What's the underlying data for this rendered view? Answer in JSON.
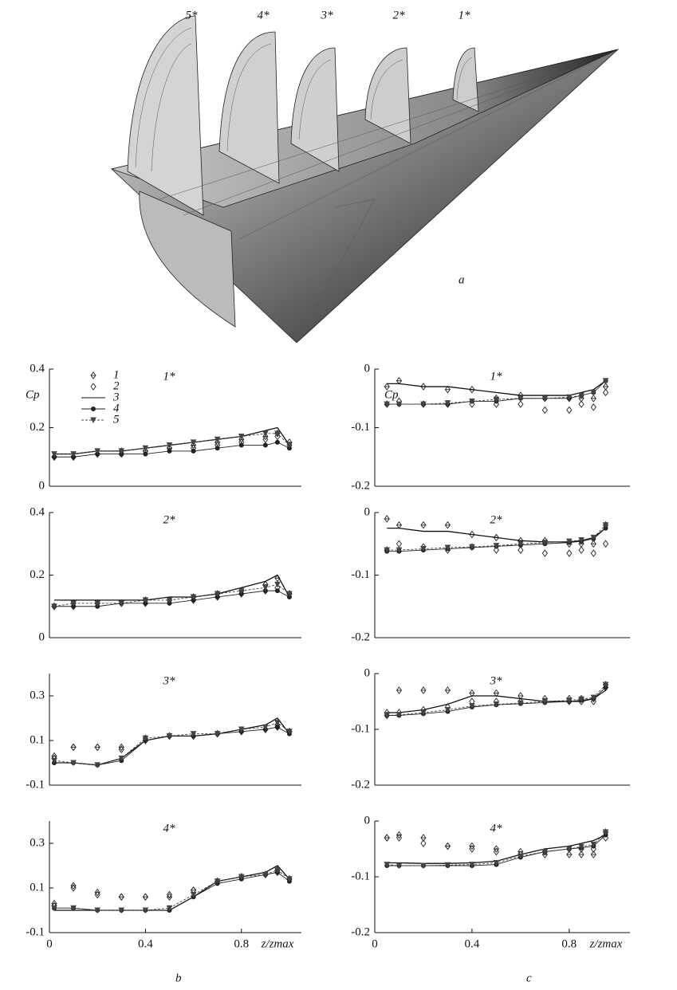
{
  "figure": {
    "sections": [
      "5*",
      "4*",
      "3*",
      "2*",
      "1*"
    ],
    "panel_a": "a",
    "panel_b": "b",
    "panel_c": "c"
  },
  "chart_data": [
    {
      "type": "line",
      "title": "1*",
      "ylabel": "Cp",
      "legend": "upper left",
      "xlim": [
        0,
        1.05
      ],
      "ylim": [
        0,
        0.4
      ],
      "yticks": [
        0,
        0.2,
        0.4
      ],
      "x": [
        0.02,
        0.1,
        0.2,
        0.3,
        0.4,
        0.5,
        0.6,
        0.7,
        0.8,
        0.9,
        0.95,
        1.0
      ],
      "series": [
        {
          "name": "1",
          "color": "#333333",
          "marker": "diamond-cross",
          "values": [
            0.1,
            0.1,
            0.11,
            0.12,
            0.12,
            0.13,
            0.14,
            0.15,
            0.16,
            0.17,
            0.18,
            0.15
          ]
        },
        {
          "name": "2",
          "color": "#333333",
          "marker": "diamond",
          "values": [
            0.1,
            0.1,
            0.11,
            0.11,
            0.12,
            0.13,
            0.13,
            0.14,
            0.15,
            0.16,
            0.17,
            0.14
          ]
        },
        {
          "name": "3",
          "color": "#111111",
          "marker": "none",
          "values": [
            0.11,
            0.11,
            0.12,
            0.12,
            0.13,
            0.14,
            0.15,
            0.16,
            0.17,
            0.19,
            0.2,
            0.14
          ]
        },
        {
          "name": "4",
          "color": "#222222",
          "marker": "circle",
          "values": [
            0.1,
            0.1,
            0.11,
            0.11,
            0.11,
            0.12,
            0.12,
            0.13,
            0.14,
            0.14,
            0.15,
            0.13
          ]
        },
        {
          "name": "5",
          "color": "#444444",
          "marker": "triangle",
          "dash": true,
          "values": [
            0.11,
            0.11,
            0.12,
            0.12,
            0.13,
            0.14,
            0.15,
            0.16,
            0.17,
            0.18,
            0.18,
            0.14
          ]
        }
      ]
    },
    {
      "type": "line",
      "title": "2*",
      "xlim": [
        0,
        1.05
      ],
      "ylim": [
        0,
        0.4
      ],
      "yticks": [
        0,
        0.2,
        0.4
      ],
      "x": [
        0.02,
        0.1,
        0.2,
        0.3,
        0.4,
        0.5,
        0.6,
        0.7,
        0.8,
        0.9,
        0.95,
        1.0
      ],
      "series": [
        {
          "color": "#333333",
          "marker": "diamond-cross",
          "values": [
            0.1,
            0.11,
            0.11,
            0.11,
            0.12,
            0.12,
            0.13,
            0.14,
            0.15,
            0.17,
            0.19,
            0.14
          ]
        },
        {
          "color": "#333333",
          "marker": "diamond",
          "values": [
            0.1,
            0.1,
            0.11,
            0.11,
            0.11,
            0.12,
            0.12,
            0.13,
            0.14,
            0.15,
            0.16,
            0.14
          ]
        },
        {
          "color": "#111111",
          "marker": "none",
          "values": [
            0.12,
            0.12,
            0.12,
            0.12,
            0.12,
            0.13,
            0.13,
            0.14,
            0.16,
            0.18,
            0.2,
            0.13
          ]
        },
        {
          "color": "#222222",
          "marker": "circle",
          "values": [
            0.1,
            0.1,
            0.1,
            0.11,
            0.11,
            0.11,
            0.12,
            0.13,
            0.14,
            0.15,
            0.15,
            0.13
          ]
        },
        {
          "color": "#444444",
          "marker": "triangle",
          "dash": true,
          "values": [
            0.1,
            0.11,
            0.11,
            0.11,
            0.12,
            0.12,
            0.13,
            0.14,
            0.15,
            0.16,
            0.17,
            0.14
          ]
        }
      ]
    },
    {
      "type": "line",
      "title": "3*",
      "xlim": [
        0,
        1.05
      ],
      "ylim": [
        -0.1,
        0.4
      ],
      "yticks": [
        -0.1,
        0.1,
        0.3
      ],
      "x": [
        0.02,
        0.1,
        0.2,
        0.3,
        0.4,
        0.5,
        0.6,
        0.7,
        0.8,
        0.9,
        0.95,
        1.0
      ],
      "series": [
        {
          "color": "#333333",
          "marker": "diamond-cross",
          "values": [
            0.03,
            0.07,
            0.07,
            0.07,
            0.11,
            0.12,
            0.12,
            0.13,
            0.14,
            0.15,
            0.17,
            0.14
          ]
        },
        {
          "color": "#333333",
          "marker": "diamond",
          "values": [
            0.02,
            0.07,
            0.07,
            0.06,
            0.1,
            0.12,
            0.12,
            0.13,
            0.14,
            0.15,
            0.16,
            0.14
          ]
        },
        {
          "color": "#111111",
          "marker": "none",
          "values": [
            0.0,
            0.0,
            -0.01,
            0.02,
            0.1,
            0.12,
            0.12,
            0.13,
            0.15,
            0.17,
            0.2,
            0.13
          ]
        },
        {
          "color": "#222222",
          "marker": "circle",
          "values": [
            0.0,
            0.0,
            -0.01,
            0.01,
            0.1,
            0.12,
            0.12,
            0.13,
            0.14,
            0.15,
            0.16,
            0.13
          ]
        },
        {
          "color": "#444444",
          "marker": "triangle",
          "dash": true,
          "values": [
            0.01,
            0.0,
            -0.01,
            0.02,
            0.11,
            0.12,
            0.13,
            0.13,
            0.15,
            0.16,
            0.18,
            0.14
          ]
        }
      ]
    },
    {
      "type": "line",
      "title": "4*",
      "xlabel": "z/zmax",
      "xlim": [
        0,
        1.05
      ],
      "ylim": [
        -0.1,
        0.4
      ],
      "yticks": [
        -0.1,
        0.1,
        0.3
      ],
      "xticks": [
        0,
        0.4,
        0.8
      ],
      "x": [
        0.02,
        0.1,
        0.2,
        0.3,
        0.4,
        0.5,
        0.6,
        0.7,
        0.8,
        0.9,
        0.95,
        1.0
      ],
      "series": [
        {
          "color": "#333333",
          "marker": "diamond-cross",
          "values": [
            0.03,
            0.11,
            0.08,
            0.06,
            0.06,
            0.06,
            0.09,
            0.13,
            0.15,
            0.16,
            0.18,
            0.14
          ]
        },
        {
          "color": "#333333",
          "marker": "diamond",
          "values": [
            0.02,
            0.1,
            0.07,
            0.06,
            0.06,
            0.07,
            0.09,
            0.13,
            0.15,
            0.16,
            0.17,
            0.14
          ]
        },
        {
          "color": "#111111",
          "marker": "none",
          "values": [
            0.0,
            0.0,
            0.0,
            0.0,
            0.0,
            0.0,
            0.06,
            0.13,
            0.15,
            0.17,
            0.2,
            0.14
          ]
        },
        {
          "color": "#222222",
          "marker": "circle",
          "values": [
            0.01,
            0.01,
            0.0,
            0.0,
            0.0,
            0.0,
            0.06,
            0.12,
            0.14,
            0.16,
            0.17,
            0.13
          ]
        },
        {
          "color": "#444444",
          "marker": "triangle",
          "dash": true,
          "values": [
            0.01,
            0.01,
            0.0,
            0.0,
            0.0,
            0.01,
            0.07,
            0.13,
            0.15,
            0.16,
            0.18,
            0.14
          ]
        }
      ]
    },
    {
      "type": "line",
      "title": "1*",
      "ylabel": "Cp",
      "xlim": [
        0,
        1.05
      ],
      "ylim": [
        -0.2,
        0
      ],
      "yticks": [
        -0.2,
        -0.1,
        0
      ],
      "x": [
        0.05,
        0.1,
        0.2,
        0.3,
        0.4,
        0.5,
        0.6,
        0.7,
        0.8,
        0.85,
        0.9,
        0.95
      ],
      "series": [
        {
          "color": "#333333",
          "marker": "diamond-cross",
          "values": [
            -0.03,
            -0.02,
            -0.03,
            -0.035,
            -0.035,
            -0.05,
            -0.045,
            -0.05,
            -0.05,
            -0.05,
            -0.05,
            -0.03
          ]
        },
        {
          "color": "#333333",
          "marker": "diamond",
          "values": [
            -0.06,
            -0.055,
            -0.06,
            -0.06,
            -0.06,
            -0.06,
            -0.06,
            -0.07,
            -0.07,
            -0.06,
            -0.065,
            -0.04
          ]
        },
        {
          "color": "#111111",
          "marker": "none",
          "values": [
            -0.025,
            -0.025,
            -0.03,
            -0.03,
            -0.035,
            -0.04,
            -0.045,
            -0.045,
            -0.045,
            -0.04,
            -0.035,
            -0.02
          ]
        },
        {
          "color": "#222222",
          "marker": "circle",
          "values": [
            -0.06,
            -0.06,
            -0.06,
            -0.06,
            -0.055,
            -0.055,
            -0.05,
            -0.05,
            -0.05,
            -0.045,
            -0.04,
            -0.02
          ]
        },
        {
          "color": "#444444",
          "marker": "triangle",
          "dash": true,
          "values": [
            -0.06,
            -0.06,
            -0.06,
            -0.058,
            -0.055,
            -0.052,
            -0.05,
            -0.05,
            -0.048,
            -0.045,
            -0.04,
            -0.02
          ]
        }
      ]
    },
    {
      "type": "line",
      "title": "2*",
      "xlim": [
        0,
        1.05
      ],
      "ylim": [
        -0.2,
        0
      ],
      "yticks": [
        -0.2,
        -0.1,
        0
      ],
      "x": [
        0.05,
        0.1,
        0.2,
        0.3,
        0.4,
        0.5,
        0.6,
        0.7,
        0.8,
        0.85,
        0.9,
        0.95
      ],
      "series": [
        {
          "color": "#333333",
          "marker": "diamond-cross",
          "values": [
            -0.01,
            -0.02,
            -0.02,
            -0.02,
            -0.035,
            -0.04,
            -0.045,
            -0.045,
            -0.05,
            -0.05,
            -0.05,
            -0.02
          ]
        },
        {
          "color": "#333333",
          "marker": "diamond",
          "values": [
            -0.06,
            -0.05,
            -0.055,
            -0.06,
            -0.055,
            -0.06,
            -0.06,
            -0.065,
            -0.065,
            -0.06,
            -0.065,
            -0.05
          ]
        },
        {
          "color": "#111111",
          "marker": "none",
          "values": [
            -0.025,
            -0.025,
            -0.03,
            -0.03,
            -0.035,
            -0.04,
            -0.045,
            -0.047,
            -0.047,
            -0.045,
            -0.04,
            -0.025
          ]
        },
        {
          "color": "#222222",
          "marker": "circle",
          "values": [
            -0.062,
            -0.062,
            -0.06,
            -0.058,
            -0.056,
            -0.054,
            -0.052,
            -0.05,
            -0.048,
            -0.046,
            -0.042,
            -0.025
          ]
        },
        {
          "color": "#444444",
          "marker": "triangle",
          "dash": true,
          "values": [
            -0.06,
            -0.06,
            -0.058,
            -0.056,
            -0.055,
            -0.053,
            -0.05,
            -0.048,
            -0.046,
            -0.044,
            -0.04,
            -0.02
          ]
        }
      ]
    },
    {
      "type": "line",
      "title": "3*",
      "xlim": [
        0,
        1.05
      ],
      "ylim": [
        -0.2,
        0
      ],
      "yticks": [
        -0.2,
        -0.1,
        0
      ],
      "x": [
        0.05,
        0.1,
        0.2,
        0.3,
        0.4,
        0.5,
        0.6,
        0.7,
        0.8,
        0.85,
        0.9,
        0.95
      ],
      "series": [
        {
          "color": "#333333",
          "marker": "diamond-cross",
          "values": [
            -0.07,
            -0.03,
            -0.03,
            -0.03,
            -0.035,
            -0.035,
            -0.04,
            -0.045,
            -0.045,
            -0.045,
            -0.045,
            -0.02
          ]
        },
        {
          "color": "#333333",
          "marker": "diamond",
          "values": [
            -0.075,
            -0.07,
            -0.065,
            -0.06,
            -0.05,
            -0.05,
            -0.05,
            -0.05,
            -0.05,
            -0.05,
            -0.05,
            -0.025
          ]
        },
        {
          "color": "#111111",
          "marker": "none",
          "values": [
            -0.07,
            -0.07,
            -0.065,
            -0.055,
            -0.04,
            -0.04,
            -0.045,
            -0.05,
            -0.05,
            -0.05,
            -0.045,
            -0.03
          ]
        },
        {
          "color": "#222222",
          "marker": "circle",
          "values": [
            -0.075,
            -0.075,
            -0.072,
            -0.068,
            -0.06,
            -0.056,
            -0.054,
            -0.052,
            -0.05,
            -0.048,
            -0.045,
            -0.025
          ]
        },
        {
          "color": "#444444",
          "marker": "triangle",
          "dash": true,
          "values": [
            -0.075,
            -0.074,
            -0.07,
            -0.065,
            -0.058,
            -0.055,
            -0.053,
            -0.05,
            -0.048,
            -0.046,
            -0.043,
            -0.02
          ]
        }
      ]
    },
    {
      "type": "line",
      "title": "4*",
      "xlabel": "z/zmax",
      "xlim": [
        0,
        1.05
      ],
      "ylim": [
        -0.2,
        0
      ],
      "yticks": [
        -0.2,
        -0.1,
        0
      ],
      "xticks": [
        0,
        0.4,
        0.8
      ],
      "x": [
        0.05,
        0.1,
        0.2,
        0.3,
        0.4,
        0.5,
        0.6,
        0.7,
        0.8,
        0.85,
        0.9,
        0.95
      ],
      "series": [
        {
          "color": "#333333",
          "marker": "diamond-cross",
          "values": [
            -0.03,
            -0.025,
            -0.03,
            -0.045,
            -0.045,
            -0.05,
            -0.055,
            -0.06,
            -0.06,
            -0.06,
            -0.06,
            -0.02
          ]
        },
        {
          "color": "#333333",
          "marker": "diamond",
          "values": [
            -0.03,
            -0.03,
            -0.04,
            -0.045,
            -0.05,
            -0.055,
            -0.06,
            -0.055,
            -0.05,
            -0.05,
            -0.05,
            -0.03
          ]
        },
        {
          "color": "#111111",
          "marker": "none",
          "values": [
            -0.075,
            -0.075,
            -0.076,
            -0.076,
            -0.075,
            -0.072,
            -0.06,
            -0.05,
            -0.045,
            -0.04,
            -0.035,
            -0.025
          ]
        },
        {
          "color": "#222222",
          "marker": "circle",
          "values": [
            -0.08,
            -0.08,
            -0.08,
            -0.08,
            -0.08,
            -0.078,
            -0.065,
            -0.055,
            -0.05,
            -0.048,
            -0.045,
            -0.025
          ]
        },
        {
          "color": "#444444",
          "marker": "triangle",
          "dash": true,
          "values": [
            -0.078,
            -0.08,
            -0.08,
            -0.079,
            -0.078,
            -0.075,
            -0.063,
            -0.055,
            -0.05,
            -0.046,
            -0.042,
            -0.02
          ]
        }
      ]
    }
  ]
}
